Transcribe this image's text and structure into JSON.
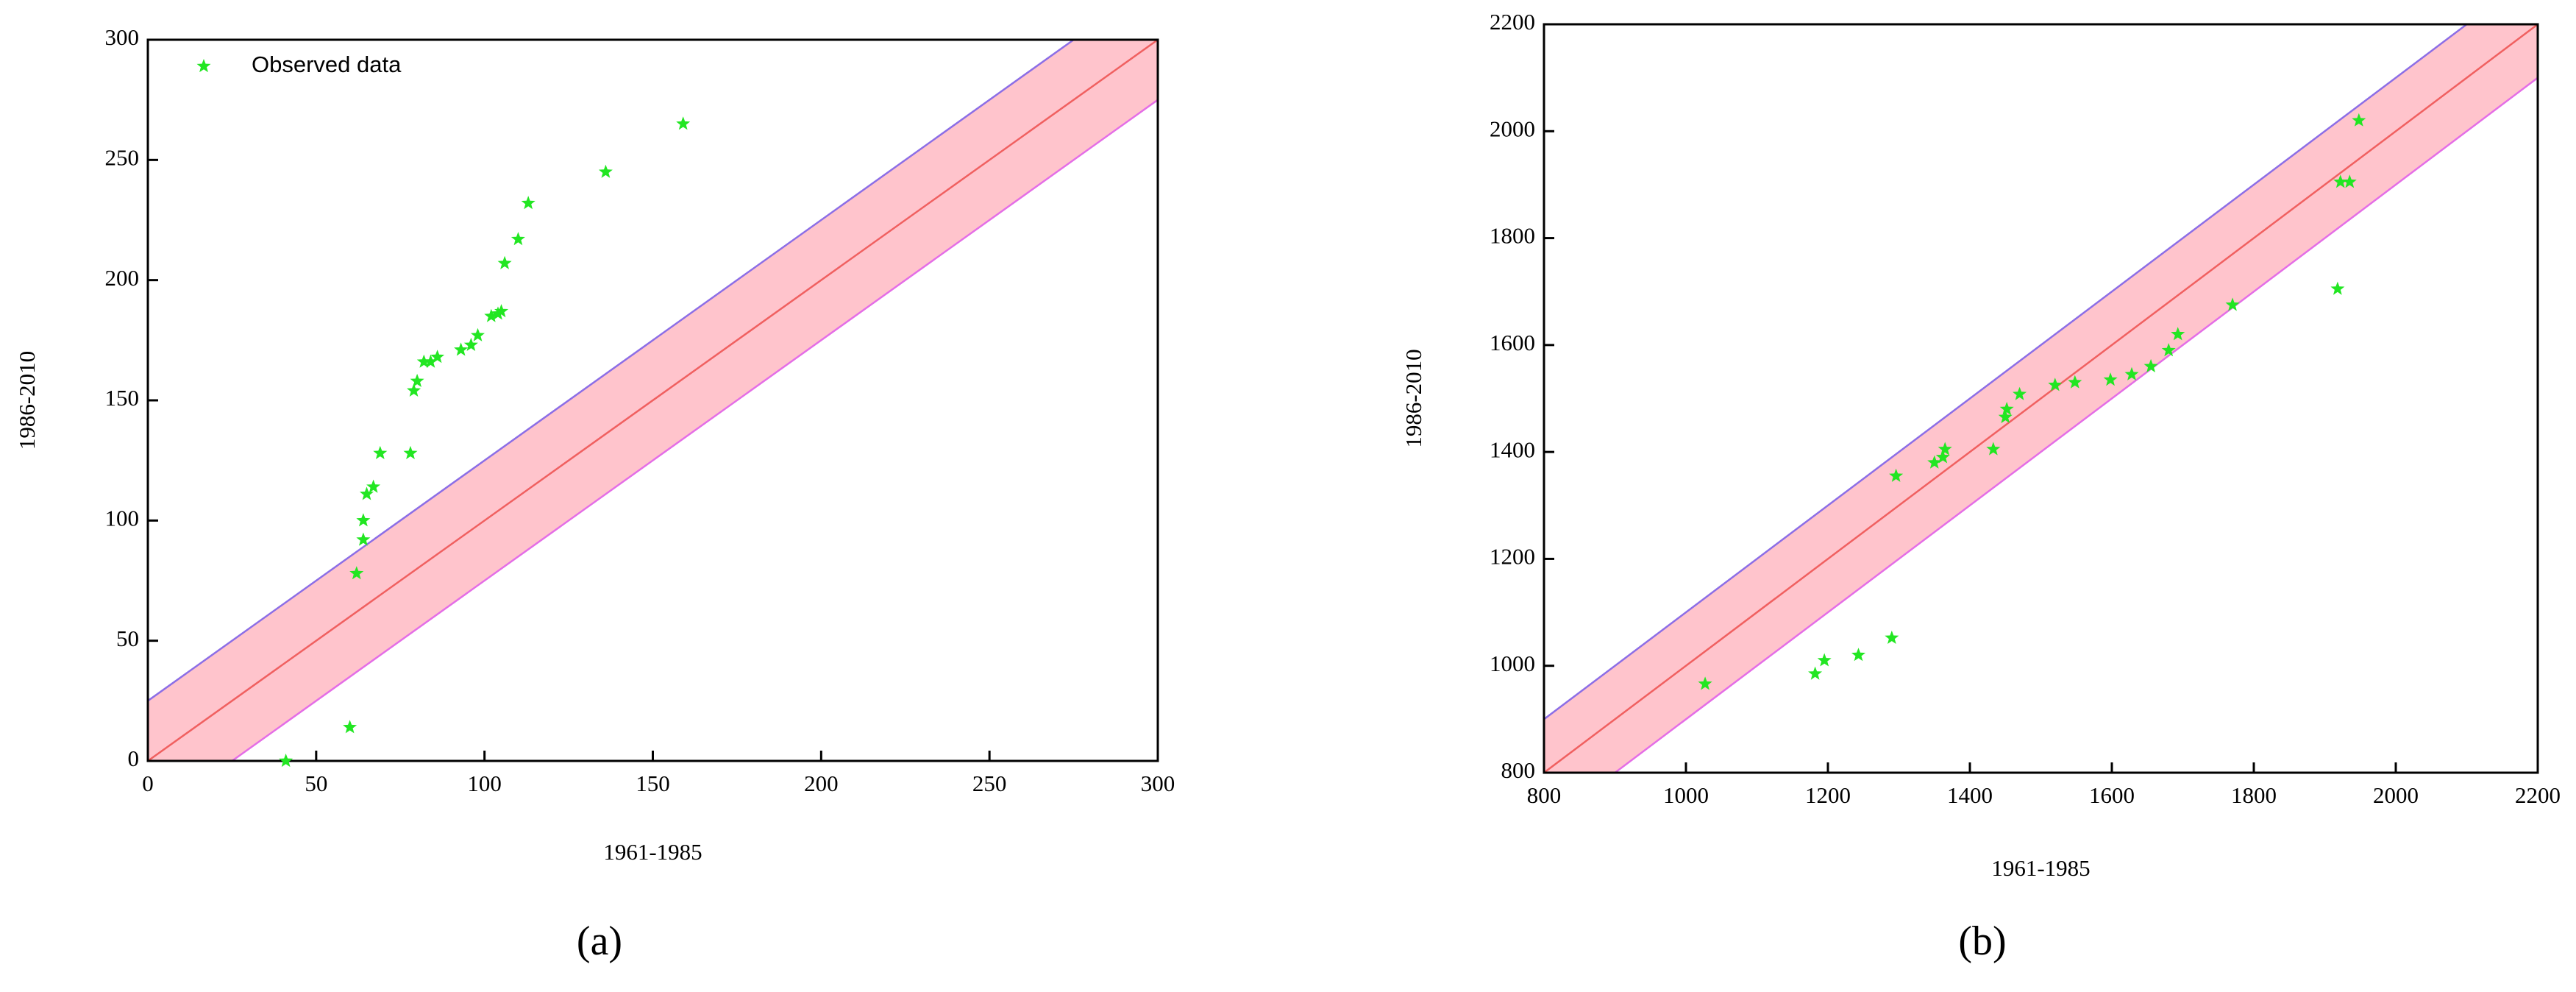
{
  "chart_data": [
    {
      "type": "scatter",
      "caption": "(a)",
      "x_label": "1961-1985",
      "y_label": "1986-2010",
      "xlim": [
        0,
        300
      ],
      "ylim": [
        0,
        300
      ],
      "xticks": [
        0,
        50,
        100,
        150,
        200,
        250,
        300
      ],
      "yticks": [
        0,
        50,
        100,
        150,
        200,
        250,
        300
      ],
      "legend": "upper left",
      "band": 25,
      "band_color": "#ffc4cc",
      "line_color": "#f06060",
      "upper_color": "#8c6ee6",
      "lower_color": "#e46ee6",
      "series": [
        {
          "name": "Observed data",
          "color": "#22e622",
          "x": [
            41,
            60,
            62,
            64,
            64,
            65,
            67,
            69,
            78,
            79,
            80,
            82,
            84,
            86,
            93,
            96,
            98,
            102,
            104,
            105,
            106,
            110,
            113,
            136,
            159
          ],
          "values": [
            0,
            14,
            78,
            92,
            100,
            111,
            114,
            128,
            128,
            154,
            158,
            166,
            166,
            168,
            171,
            173,
            177,
            185,
            186,
            187,
            207,
            217,
            232,
            245,
            265
          ]
        }
      ]
    },
    {
      "type": "scatter",
      "caption": "(b)",
      "x_label": "1961-1985",
      "y_label": "1986-2010",
      "xlim": [
        800,
        2200
      ],
      "ylim": [
        800,
        2200
      ],
      "xticks": [
        800,
        1000,
        1200,
        1400,
        1600,
        1800,
        2000,
        2200
      ],
      "yticks": [
        800,
        1000,
        1200,
        1400,
        1600,
        1800,
        2000,
        2200
      ],
      "band": 100,
      "band_color": "#ffc4cc",
      "line_color": "#f06060",
      "upper_color": "#8c6ee6",
      "lower_color": "#e46ee6",
      "series": [
        {
          "color": "#22e622",
          "x": [
            1027,
            1182,
            1195,
            1243,
            1290,
            1296,
            1350,
            1362,
            1365,
            1433,
            1450,
            1452,
            1470,
            1520,
            1548,
            1598,
            1628,
            1655,
            1680,
            1693,
            1770,
            1918,
            1922,
            1935,
            1948
          ],
          "values": [
            966,
            985,
            1010,
            1020,
            1052,
            1355,
            1380,
            1390,
            1405,
            1405,
            1465,
            1480,
            1508,
            1525,
            1530,
            1535,
            1545,
            1560,
            1590,
            1620,
            1675,
            1705,
            1905,
            1905,
            2020
          ]
        }
      ]
    }
  ]
}
